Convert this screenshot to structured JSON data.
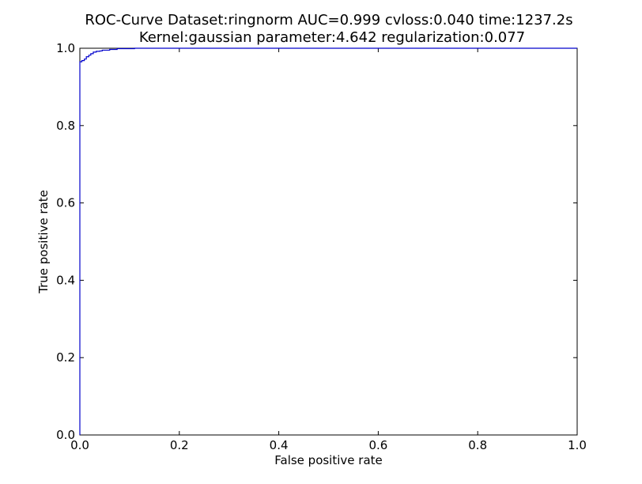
{
  "chart_data": {
    "type": "line",
    "title_line1": "ROC-Curve Dataset:ringnorm AUC=0.999 cvloss:0.040 time:1237.2s",
    "title_line2": "Kernel:gaussian parameter:4.642 regularization:0.077",
    "xlabel": "False positive rate",
    "ylabel": "True positive rate",
    "xlim": [
      0.0,
      1.0
    ],
    "ylim": [
      0.0,
      1.0
    ],
    "xticks": [
      "0.0",
      "0.2",
      "0.4",
      "0.6",
      "0.8",
      "1.0"
    ],
    "yticks": [
      "0.0",
      "0.2",
      "0.4",
      "0.6",
      "0.8",
      "1.0"
    ],
    "grid": false,
    "series": [
      {
        "color": "#0000cc",
        "x": [
          0.0,
          0.0,
          0.004,
          0.004,
          0.009,
          0.009,
          0.013,
          0.013,
          0.018,
          0.018,
          0.022,
          0.022,
          0.027,
          0.027,
          0.033,
          0.033,
          0.04,
          0.04,
          0.045,
          0.045,
          0.06,
          0.06,
          0.075,
          0.075,
          0.11,
          0.11,
          1.0
        ],
        "y": [
          0.0,
          0.965,
          0.965,
          0.968,
          0.968,
          0.972,
          0.972,
          0.978,
          0.978,
          0.982,
          0.982,
          0.986,
          0.986,
          0.99,
          0.99,
          0.992,
          0.992,
          0.993,
          0.993,
          0.995,
          0.995,
          0.997,
          0.997,
          0.999,
          0.999,
          1.0,
          1.0
        ]
      }
    ]
  }
}
